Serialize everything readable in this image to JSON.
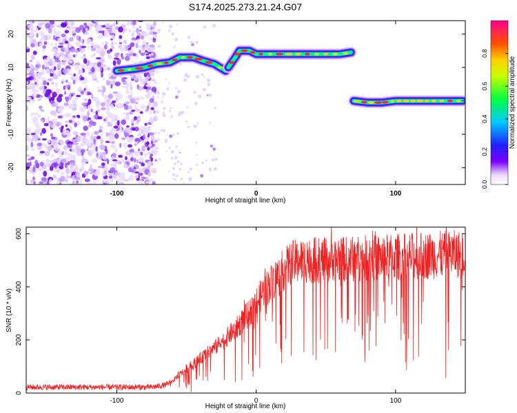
{
  "title": "S174.2025.273.21.24.G07",
  "chart_data": [
    {
      "type": "heatmap",
      "xlabel": "Height of straight line (km)",
      "ylabel": "Frequency (Hz)",
      "xlim": [
        -165,
        150
      ],
      "ylim": [
        -25,
        24
      ],
      "xticks": [
        -100,
        0,
        100
      ],
      "yticks": [
        20,
        10,
        0,
        -10,
        -20
      ],
      "colorbar": {
        "label": "Normalized spectral amplitude",
        "range": [
          0,
          1
        ],
        "ticks": [
          0.0,
          0.2,
          0.4,
          0.6,
          0.8
        ]
      },
      "ridges": [
        {
          "name": "ridge-1",
          "points": [
            [
              -100,
              9
            ],
            [
              -88,
              9.5
            ],
            [
              -80,
              10
            ],
            [
              -72,
              11
            ],
            [
              -62,
              11.5
            ],
            [
              -55,
              13
            ],
            [
              -45,
              13
            ],
            [
              -38,
              12
            ],
            [
              -30,
              11
            ],
            [
              -22,
              9
            ]
          ]
        },
        {
          "name": "ridge-2",
          "points": [
            [
              -20,
              10
            ],
            [
              -15,
              13
            ],
            [
              -12,
              15
            ],
            [
              -5,
              15
            ],
            [
              0,
              14
            ],
            [
              20,
              14
            ],
            [
              40,
              14
            ],
            [
              60,
              14
            ],
            [
              68,
              14.5
            ]
          ]
        },
        {
          "name": "ridge-3",
          "points": [
            [
              70,
              0
            ],
            [
              80,
              -0.5
            ],
            [
              90,
              -0.5
            ],
            [
              100,
              0
            ],
            [
              115,
              0
            ],
            [
              130,
              0
            ],
            [
              148,
              0
            ]
          ]
        }
      ],
      "noise_region_km": [
        -165,
        -80
      ]
    },
    {
      "type": "line",
      "xlabel": "Height of straight line (km)",
      "ylabel": "SNR (10 * v/v)",
      "xlim": [
        -165,
        150
      ],
      "ylim": [
        0,
        625
      ],
      "xticks": [
        -100,
        0,
        100
      ],
      "yticks": [
        0,
        200,
        400,
        600
      ],
      "series": [
        {
          "name": "SNR",
          "color": "#ee2222",
          "envelope_x": [
            -165,
            -75,
            -65,
            -60,
            -55,
            -45,
            -35,
            -25,
            -15,
            -5,
            5,
            15,
            25,
            35,
            50,
            70,
            90,
            110,
            130,
            150
          ],
          "envelope_y": [
            22,
            22,
            30,
            45,
            70,
            110,
            150,
            190,
            240,
            300,
            380,
            440,
            490,
            500,
            500,
            505,
            510,
            515,
            520,
            525
          ]
        }
      ]
    }
  ],
  "colors": {
    "axis": "#000000",
    "trace": "#ee2222"
  }
}
